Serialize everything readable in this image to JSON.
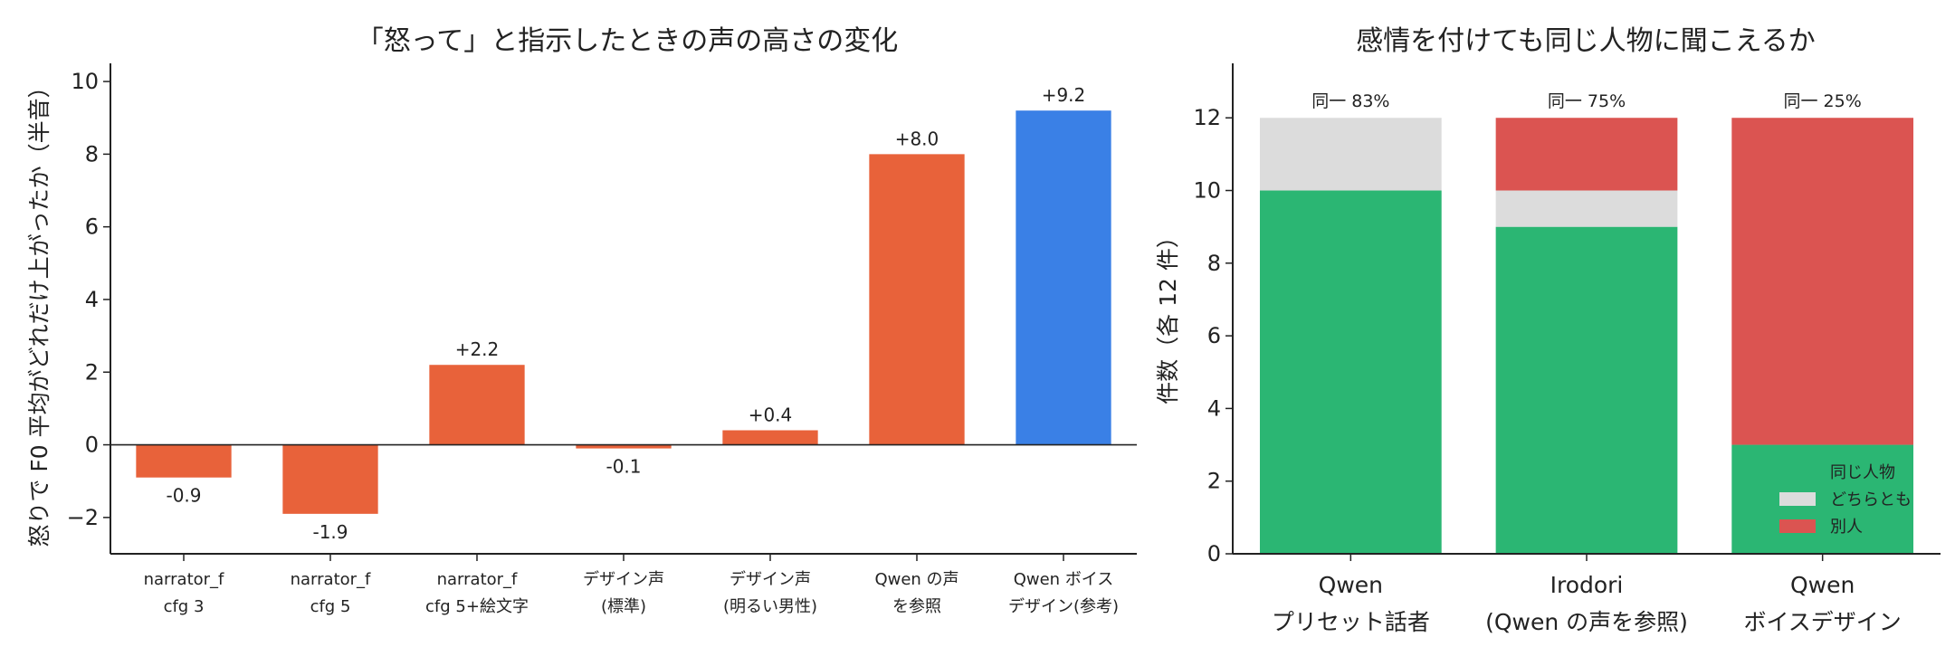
{
  "chart_data": [
    {
      "type": "bar",
      "title": "「怒って」と指示したときの声の高さの変化",
      "ylabel": "怒りで F0 平均がどれだけ上がったか（半音）",
      "xlabel": "",
      "ylim": [
        -3,
        10.5
      ],
      "yticks": [
        -2,
        0,
        2,
        4,
        6,
        8,
        10
      ],
      "ytick_labels": [
        "−2",
        "0",
        "2",
        "4",
        "6",
        "8",
        "10"
      ],
      "categories": [
        [
          "narrator_f",
          "cfg 3"
        ],
        [
          "narrator_f",
          "cfg 5"
        ],
        [
          "narrator_f",
          "cfg 5+絵文字"
        ],
        [
          "デザイン声",
          "(標準)"
        ],
        [
          "デザイン声",
          "(明るい男性)"
        ],
        [
          "Qwen の声",
          "を参照"
        ],
        [
          "Qwen ボイス",
          "デザイン(参考)"
        ]
      ],
      "values": [
        -0.9,
        -1.9,
        2.2,
        -0.1,
        0.4,
        8.0,
        9.2
      ],
      "value_labels": [
        "-0.9",
        "-1.9",
        "+2.2",
        "-0.1",
        "+0.4",
        "+8.0",
        "+9.2"
      ],
      "colors": [
        "#e8623a",
        "#e8623a",
        "#e8623a",
        "#e8623a",
        "#e8623a",
        "#e8623a",
        "#3a80e6"
      ],
      "grid": false
    },
    {
      "type": "bar",
      "stacked": true,
      "title": "感情を付けても同じ人物に聞こえるか",
      "ylabel": "件数（各 12 件）",
      "xlabel": "",
      "ylim": [
        0,
        13.5
      ],
      "yticks": [
        0,
        2,
        4,
        6,
        8,
        10,
        12
      ],
      "categories": [
        [
          "Qwen",
          "プリセット話者"
        ],
        [
          "Irodori",
          "(Qwen の声を参照)"
        ],
        [
          "Qwen",
          "ボイスデザイン"
        ]
      ],
      "series": [
        {
          "name": "同じ人物",
          "color": "#2bb673",
          "values": [
            10,
            9,
            3
          ]
        },
        {
          "name": "どちらとも",
          "color": "#dcdcdc",
          "values": [
            2,
            1,
            0
          ]
        },
        {
          "name": "別人",
          "color": "#db5451",
          "values": [
            0,
            2,
            9
          ]
        }
      ],
      "top_labels": [
        "同一 83%",
        "同一 75%",
        "同一 25%"
      ],
      "legend_placement": "bottom-right",
      "grid": false
    }
  ]
}
